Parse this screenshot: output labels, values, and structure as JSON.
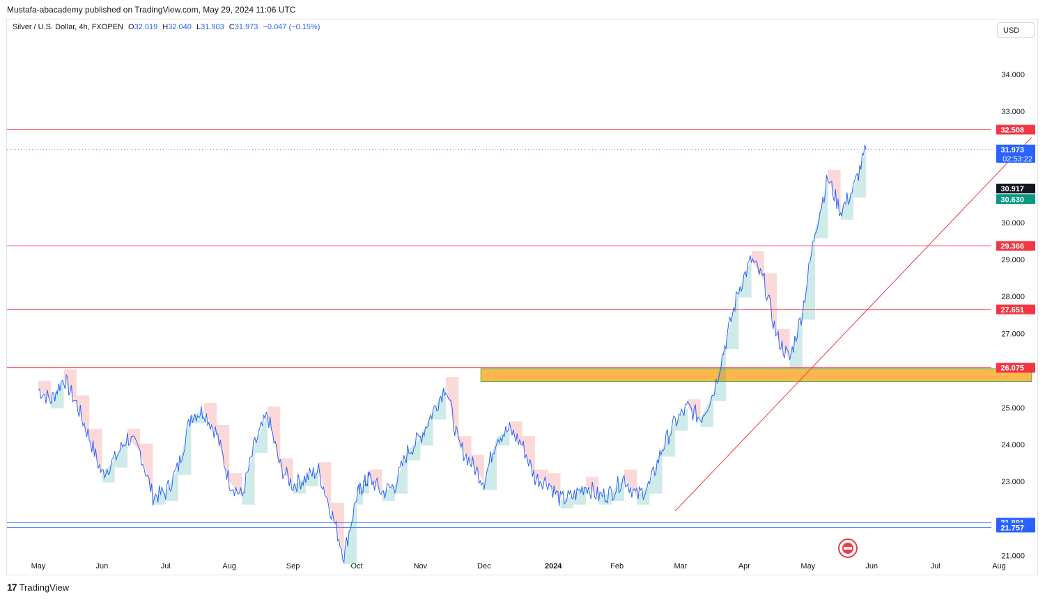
{
  "header": {
    "publisher_line": "Mustafa-abacademy published on TradingView.com, May 29, 2024 11:06 UTC"
  },
  "legend": {
    "symbol": "Silver / U.S. Dollar, 4h, FXOPEN",
    "o_label": "O",
    "o_value": "32.019",
    "h_label": "H",
    "h_value": "32.040",
    "l_label": "L",
    "l_value": "31.903",
    "c_label": "C",
    "c_value": "31.973",
    "change": "−0.047 (−0.15%)"
  },
  "currency_button": "USD",
  "footer": {
    "brand": "TradingView",
    "logo_glyph": "17"
  },
  "colors": {
    "price_line": "#2962ff",
    "resistance_line": "#f23645",
    "support_line": "#2962ff",
    "zone_fill": "#ffb74d",
    "cloud_up": "#26a69a",
    "cloud_down": "#ef5350"
  },
  "chart_data": {
    "type": "line",
    "title": "Silver / U.S. Dollar, 4h, FXOPEN",
    "xlabel": "",
    "ylabel": "",
    "y_tick_labels": [
      "34.000",
      "33.000",
      "30.000",
      "29.000",
      "28.000",
      "27.000",
      "25.000",
      "24.000",
      "23.000",
      "21.000"
    ],
    "x_tick_labels": [
      "May",
      "Jun",
      "Jul",
      "Aug",
      "Sep",
      "Oct",
      "Nov",
      "Dec",
      "2024",
      "Feb",
      "Mar",
      "Apr",
      "May",
      "Jun",
      "Jul",
      "Aug"
    ],
    "x_tick_bold": [
      false,
      false,
      false,
      false,
      false,
      false,
      false,
      false,
      true,
      false,
      false,
      false,
      false,
      false,
      false,
      false
    ],
    "ylim": [
      20.9,
      35.2
    ],
    "price_series": {
      "x_month_index": [
        0,
        0.2,
        0.4,
        0.6,
        0.8,
        1.0,
        1.2,
        1.4,
        1.6,
        1.8,
        2.0,
        2.2,
        2.4,
        2.6,
        2.8,
        3.0,
        3.2,
        3.4,
        3.6,
        3.8,
        4.0,
        4.2,
        4.4,
        4.6,
        4.8,
        5.0,
        5.1,
        5.2,
        5.4,
        5.6,
        5.8,
        6.0,
        6.2,
        6.4,
        6.6,
        6.8,
        7.0,
        7.2,
        7.4,
        7.6,
        7.8,
        8.0,
        8.2,
        8.4,
        8.6,
        8.8,
        9.0,
        9.2,
        9.4,
        9.6,
        9.8,
        10.0,
        10.2,
        10.4,
        10.6,
        10.8,
        11.0,
        11.2,
        11.4,
        11.6,
        11.8,
        12.0,
        12.2,
        12.4,
        12.6,
        12.8,
        13.0
      ],
      "values": [
        25.5,
        25.2,
        25.8,
        25.1,
        24.2,
        23.2,
        23.6,
        24.2,
        23.8,
        22.6,
        22.7,
        23.4,
        24.8,
        24.9,
        24.3,
        23.0,
        22.6,
        24.0,
        24.8,
        23.4,
        22.9,
        23.1,
        23.3,
        22.2,
        21.0,
        22.6,
        22.9,
        23.1,
        22.7,
        22.9,
        23.8,
        24.2,
        24.9,
        25.6,
        24.0,
        23.5,
        23.0,
        24.2,
        24.4,
        24.0,
        23.1,
        23.0,
        22.5,
        22.6,
        22.9,
        22.6,
        22.7,
        23.1,
        22.6,
        22.9,
        23.9,
        24.6,
        25.0,
        24.7,
        25.4,
        26.8,
        28.2,
        29.0,
        28.4,
        26.9,
        26.3,
        27.6,
        29.8,
        31.2,
        30.3,
        30.9,
        31.973
      ],
      "name": ""
    },
    "horizontal_levels": [
      {
        "value": 32.508,
        "label": "32.508",
        "color": "#f23645"
      },
      {
        "value": 29.366,
        "label": "29.366",
        "color": "#f23645"
      },
      {
        "value": 27.651,
        "label": "27.651",
        "color": "#f23645"
      },
      {
        "value": 26.075,
        "label": "26.075",
        "color": "#f23645"
      },
      {
        "value": 21.891,
        "label": "21.891",
        "color": "#2962ff"
      },
      {
        "value": 21.757,
        "label": "21.757",
        "color": "#2962ff"
      }
    ],
    "last_price": {
      "value": 31.973,
      "label": "31.973",
      "countdown": "02:53:22"
    },
    "indicator_labels": [
      {
        "value": 30.917,
        "label": "30.917",
        "color": "#131722"
      },
      {
        "value": 30.63,
        "label": "30.630",
        "color": "#089981"
      }
    ],
    "zone": {
      "y_top": 26.05,
      "y_bottom": 25.7,
      "x_start_month": 6.95,
      "x_end_month": 15.6
    },
    "trendline": {
      "x_start_month": 10.0,
      "y_start": 22.2,
      "x_end_month": 15.6,
      "y_end": 32.3
    }
  }
}
